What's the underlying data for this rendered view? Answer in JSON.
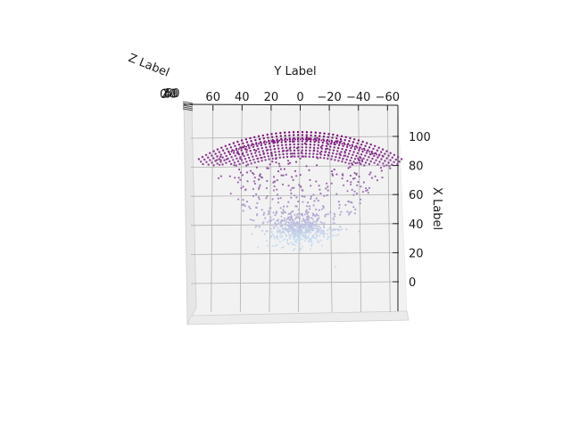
{
  "chart_data": {
    "type": "scatter",
    "title": "",
    "xlabel": "X Label",
    "ylabel": "Y Label",
    "zlabel": "Z Label",
    "x_ticks": [
      "0",
      "20",
      "40",
      "60",
      "80",
      "100"
    ],
    "y_ticks": [
      "60",
      "40",
      "20",
      "0",
      "−20",
      "−40",
      "−60"
    ],
    "z_ticks_overlapping": [
      "0",
      "20",
      "40",
      "50"
    ],
    "xlim": [
      -15,
      110
    ],
    "ylim": [
      -62,
      62
    ],
    "grid": true,
    "view": "top-down",
    "colormap": {
      "low": "#c6dbef",
      "high": "#74006f"
    },
    "surface": {
      "radius": 103,
      "theta_range_deg": [
        -35,
        35
      ],
      "cap_x": 80,
      "note_points": 1500
    },
    "cluster": {
      "center_x": 36,
      "center_y": 0,
      "count": 500
    },
    "scatter_count": 350
  }
}
